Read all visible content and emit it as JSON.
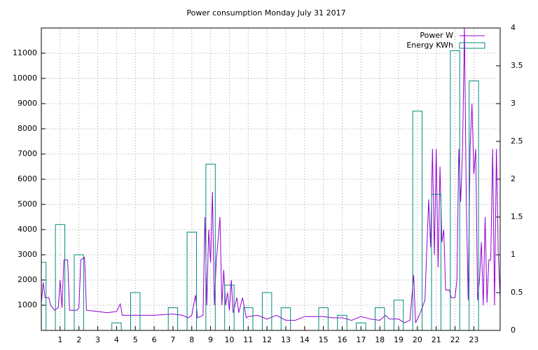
{
  "chart_data": {
    "type": "line",
    "title": "Power consumption Monday July 31 2017",
    "xlim": [
      0,
      24.4
    ],
    "xticks": [
      1,
      2,
      3,
      4,
      5,
      6,
      7,
      8,
      9,
      10,
      11,
      12,
      13,
      14,
      15,
      16,
      17,
      18,
      19,
      20,
      21,
      22,
      23
    ],
    "ylim": [
      0,
      12000
    ],
    "yticks": [
      1000,
      2000,
      3000,
      4000,
      5000,
      6000,
      7000,
      8000,
      9000,
      10000,
      11000
    ],
    "y2lim": [
      0,
      4
    ],
    "y2ticks": [
      0,
      0.5,
      1,
      1.5,
      2,
      2.5,
      3,
      3.5,
      4
    ],
    "grid": true,
    "legend": "top-right",
    "series": [
      {
        "name": "Power W",
        "color": "#9400d3",
        "type": "line",
        "x": [
          0,
          0.1,
          0.2,
          0.4,
          0.5,
          0.7,
          0.9,
          1.0,
          1.1,
          1.2,
          1.4,
          1.5,
          1.9,
          2.0,
          2.1,
          2.3,
          2.4,
          3.0,
          3.5,
          4.0,
          4.2,
          4.3,
          5,
          6,
          7,
          7.5,
          7.8,
          8,
          8.2,
          8.3,
          8.6,
          8.7,
          8.8,
          8.9,
          9.0,
          9.1,
          9.2,
          9.3,
          9.5,
          9.6,
          9.7,
          9.8,
          9.9,
          10.0,
          10.1,
          10.2,
          10.4,
          10.5,
          10.7,
          10.9,
          11,
          11.5,
          12,
          12.5,
          13,
          13.5,
          14,
          15,
          15.5,
          16,
          16.5,
          17,
          17.5,
          18,
          18.3,
          18.5,
          19,
          19.3,
          19.6,
          19.8,
          19.9,
          20.1,
          20.3,
          20.4,
          20.5,
          20.6,
          20.7,
          20.8,
          20.9,
          21.0,
          21.1,
          21.2,
          21.3,
          21.4,
          21.5,
          21.7,
          21.8,
          22.0,
          22.1,
          22.2,
          22.3,
          22.4,
          22.5,
          22.6,
          22.7,
          22.8,
          22.9,
          23.0,
          23.1,
          23.2,
          23.3,
          23.4,
          23.5,
          23.6,
          23.7,
          23.8,
          23.9,
          24.0,
          24.1,
          24.2,
          24.3,
          24.4
        ],
        "values": [
          1100,
          1900,
          1300,
          1300,
          1000,
          800,
          900,
          2000,
          900,
          2800,
          2800,
          800,
          800,
          900,
          2800,
          2900,
          800,
          750,
          700,
          750,
          1050,
          600,
          600,
          600,
          650,
          600,
          500,
          600,
          1400,
          500,
          600,
          4500,
          1000,
          4000,
          2700,
          5500,
          1000,
          2700,
          4500,
          1000,
          2400,
          1000,
          1500,
          800,
          2000,
          700,
          1300,
          700,
          1300,
          500,
          550,
          600,
          450,
          600,
          400,
          400,
          550,
          550,
          500,
          500,
          400,
          550,
          450,
          400,
          600,
          450,
          450,
          300,
          400,
          2200,
          300,
          600,
          1000,
          1200,
          3300,
          5200,
          3300,
          7200,
          3000,
          7200,
          2500,
          6500,
          3500,
          4000,
          1600,
          1600,
          1300,
          1300,
          2000,
          7200,
          5100,
          7200,
          12000,
          5100,
          1200,
          7200,
          9000,
          6200,
          7200,
          1200,
          2000,
          3500,
          1000,
          4500,
          1100,
          2800,
          2800,
          7200,
          1000,
          7200,
          3000,
          1300
        ]
      },
      {
        "name": "Energy KWh",
        "color": "#008b80",
        "type": "bar",
        "axis": "y2",
        "x": [
          0,
          1,
          2,
          3,
          4,
          5,
          6,
          7,
          8,
          9,
          10,
          11,
          12,
          13,
          14,
          15,
          16,
          17,
          18,
          19,
          20,
          21,
          22,
          23
        ],
        "values": [
          0.9,
          1.4,
          1.0,
          0,
          0.1,
          0.5,
          0,
          0.3,
          1.3,
          2.2,
          0.6,
          0.3,
          0.5,
          0.3,
          0,
          0.3,
          0.2,
          0.1,
          0.3,
          0.4,
          2.9,
          1.8,
          3.7,
          3.3
        ]
      }
    ]
  }
}
